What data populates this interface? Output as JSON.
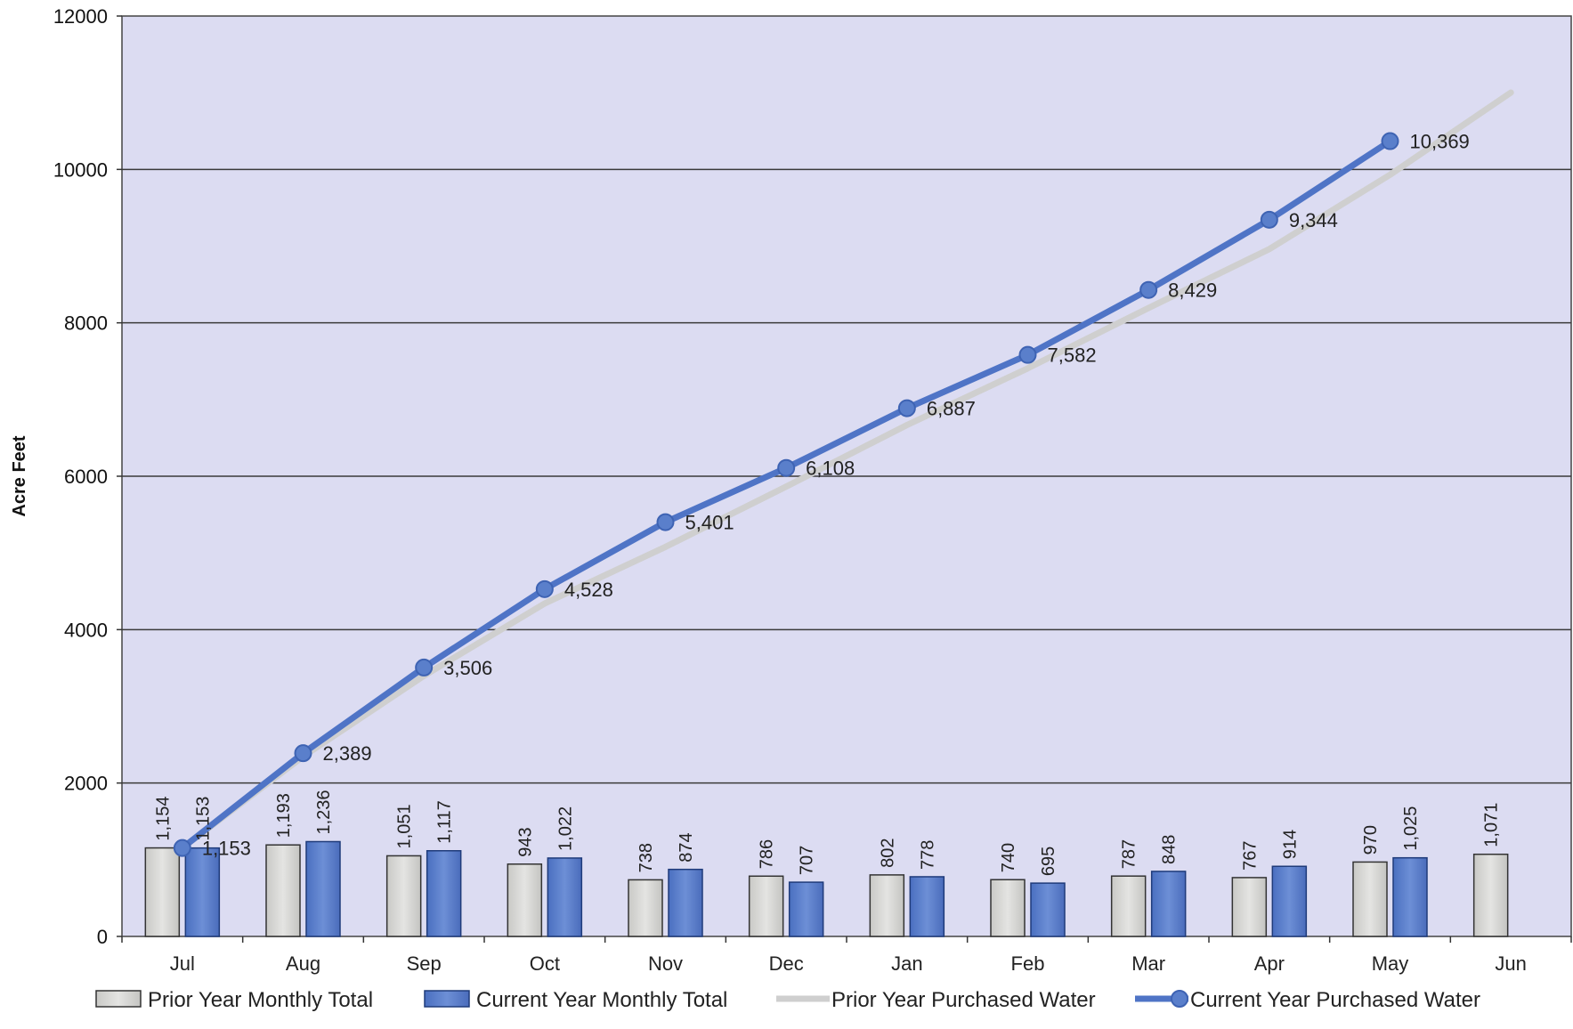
{
  "chart_data": {
    "type": "bar",
    "categories": [
      "Jul",
      "Aug",
      "Sep",
      "Oct",
      "Nov",
      "Dec",
      "Jan",
      "Feb",
      "Mar",
      "Apr",
      "May",
      "Jun"
    ],
    "ylabel": "Acre Feet",
    "ylim": [
      0,
      12000
    ],
    "yticks": [
      0,
      2000,
      4000,
      6000,
      8000,
      10000,
      12000
    ],
    "grid": "horizontal",
    "legend_position": "bottom",
    "series": [
      {
        "name": "Prior Year Monthly Total",
        "kind": "bar",
        "color": "#d4d4d2",
        "values": [
          1154,
          1193,
          1051,
          943,
          738,
          786,
          802,
          740,
          787,
          767,
          970,
          1071
        ],
        "labels": [
          "1,154",
          "1,193",
          "1,051",
          "943",
          "738",
          "786",
          "802",
          "740",
          "787",
          "767",
          "970",
          "1,071"
        ]
      },
      {
        "name": "Current Year Monthly Total",
        "kind": "bar",
        "color": "#5a7fcb",
        "values": [
          1153,
          1236,
          1117,
          1022,
          874,
          707,
          778,
          695,
          848,
          914,
          1025,
          null
        ],
        "labels": [
          "1,153",
          "1,236",
          "1,117",
          "1,022",
          "874",
          "707",
          "778",
          "695",
          "848",
          "914",
          "1,025",
          ""
        ]
      },
      {
        "name": "Prior Year Purchased Water",
        "kind": "line",
        "color": "#d2d2d2",
        "values": [
          1154,
          2347,
          3398,
          4341,
          5079,
          5865,
          6667,
          7407,
          8194,
          8961,
          9931,
          11002
        ]
      },
      {
        "name": "Current Year Purchased Water",
        "kind": "line",
        "color": "#4f74c6",
        "values": [
          1153,
          2389,
          3506,
          4528,
          5401,
          6108,
          6887,
          7582,
          8429,
          9344,
          10369,
          null
        ],
        "labels": [
          "1,153",
          "2,389",
          "3,506",
          "4,528",
          "5,401",
          "6,108",
          "6,887",
          "7,582",
          "8,429",
          "9,344",
          "10,369",
          ""
        ]
      }
    ]
  }
}
